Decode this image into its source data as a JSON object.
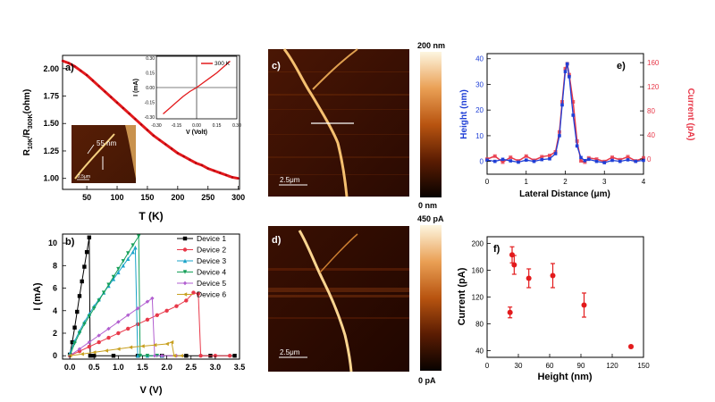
{
  "colors": {
    "red": "#e31a1c",
    "black": "#000000",
    "blue": "#1f3fd6",
    "pinkred": "#e8394a",
    "green": "#17a05a",
    "cyan": "#1aa3c8",
    "purple": "#b25fd0",
    "olive": "#c8a020",
    "afm_dark": "#1a0800",
    "afm_mid": "#8a3a08",
    "afm_light": "#f3d9a0"
  },
  "figure": {
    "panel_a": {
      "label": "a)",
      "xlabel": "T (K)",
      "ylabel_main": "R",
      "ylabel_sub1": "10K",
      "ylabel_mid": "/R",
      "ylabel_sub2": "300K",
      "ylabel_tail": "(ohm)",
      "xticks": [
        "50",
        "100",
        "150",
        "200",
        "250",
        "300"
      ],
      "yticks": [
        "1.00",
        "1.25",
        "1.50",
        "1.75",
        "2.00"
      ],
      "inset_iv": {
        "legend": "300 K",
        "xlabel": "V (Volt)",
        "ylabel": "I (mA)",
        "xticks": [
          "-0.30",
          "-0.15",
          "0.00",
          "0.15",
          "0.30"
        ],
        "yticks": [
          "0.30",
          "0.15",
          "0.00",
          "-0.15",
          "-0.30"
        ]
      },
      "inset_afm": {
        "width_label": "55 nm",
        "scale_label": "2.5μm"
      }
    },
    "panel_b": {
      "label": "b)",
      "xlabel": "V (V)",
      "ylabel": "I (mA)",
      "xticks": [
        "0.0",
        "0.5",
        "1.0",
        "1.5",
        "2.0",
        "2.5",
        "3.0",
        "3.5"
      ],
      "yticks": [
        "0",
        "2",
        "4",
        "6",
        "8",
        "10"
      ],
      "legend": [
        "Device 1",
        "Device 2",
        "Device 3",
        "Device 4",
        "Device 5",
        "Device 6"
      ]
    },
    "panel_c": {
      "label": "c)",
      "scale_label": "2.5μm",
      "cbar_top": "200 nm",
      "cbar_bottom": "0 nm"
    },
    "panel_d": {
      "label": "d)",
      "scale_label": "2.5μm",
      "cbar_top": "450 pA",
      "cbar_bottom": "0 pA"
    },
    "panel_e": {
      "label": "e)",
      "xlabel": "Lateral Distance (μm)",
      "ylabel_left": "Height (nm)",
      "ylabel_right": "Current (pA)",
      "xticks": [
        "0",
        "1",
        "2",
        "3",
        "4"
      ],
      "yticks_left": [
        "0",
        "10",
        "20",
        "30",
        "40"
      ],
      "yticks_right": [
        "0",
        "40",
        "80",
        "120",
        "160"
      ]
    },
    "panel_f": {
      "label": "f)",
      "xlabel": "Height (nm)",
      "ylabel": "Current (pA)",
      "xticks": [
        "0",
        "30",
        "60",
        "90",
        "120",
        "150"
      ],
      "yticks": [
        "40",
        "80",
        "120",
        "160",
        "200"
      ]
    }
  },
  "chart_data": [
    {
      "id": "a-main",
      "type": "line",
      "xlabel": "T (K)",
      "ylabel": "R10K/R300K(ohm)",
      "xlim": [
        10,
        302
      ],
      "ylim": [
        0.9,
        2.12
      ],
      "series": [
        {
          "x": [
            10,
            20,
            30,
            40,
            50,
            60,
            70,
            80,
            90,
            100,
            110,
            120,
            130,
            140,
            150,
            160,
            170,
            180,
            190,
            200,
            210,
            220,
            230,
            240,
            250,
            260,
            270,
            280,
            290,
            300
          ],
          "y": [
            2.07,
            2.05,
            2.02,
            1.98,
            1.94,
            1.89,
            1.84,
            1.79,
            1.74,
            1.69,
            1.64,
            1.59,
            1.54,
            1.49,
            1.44,
            1.39,
            1.35,
            1.31,
            1.27,
            1.23,
            1.2,
            1.17,
            1.14,
            1.12,
            1.09,
            1.07,
            1.05,
            1.03,
            1.01,
            1.0
          ]
        }
      ]
    },
    {
      "id": "a-inset",
      "type": "line",
      "xlabel": "V (Volt)",
      "ylabel": "I (mA)",
      "xlim": [
        -0.3,
        0.3
      ],
      "ylim": [
        -0.32,
        0.32
      ],
      "series": [
        {
          "name": "300 K",
          "x": [
            -0.25,
            -0.2,
            -0.15,
            -0.1,
            -0.05,
            0.0,
            0.05,
            0.1,
            0.15,
            0.2,
            0.25
          ],
          "y": [
            -0.27,
            -0.21,
            -0.15,
            -0.09,
            -0.04,
            0.0,
            0.05,
            0.1,
            0.15,
            0.21,
            0.27
          ]
        }
      ]
    },
    {
      "id": "b",
      "type": "line",
      "xlabel": "V (V)",
      "ylabel": "I (mA)",
      "xlim": [
        -0.15,
        3.5
      ],
      "ylim": [
        -0.3,
        10.8
      ],
      "series": [
        {
          "name": "Device 1",
          "x": [
            0.0,
            0.05,
            0.1,
            0.15,
            0.2,
            0.25,
            0.3,
            0.35,
            0.4,
            0.42,
            0.5,
            0.9,
            1.4,
            1.9,
            2.4,
            2.9,
            3.4
          ],
          "y": [
            0.1,
            1.2,
            2.5,
            3.9,
            5.3,
            6.6,
            7.9,
            9.2,
            10.5,
            0.0,
            0.0,
            0.0,
            0.0,
            0.0,
            0.0,
            0.0,
            0.0
          ]
        },
        {
          "name": "Device 2",
          "x": [
            0.0,
            0.2,
            0.4,
            0.6,
            0.8,
            1.0,
            1.2,
            1.4,
            1.6,
            1.8,
            2.0,
            2.2,
            2.4,
            2.55,
            2.65,
            2.7,
            3.0,
            3.3
          ],
          "y": [
            0.0,
            0.4,
            0.8,
            1.2,
            1.6,
            2.0,
            2.4,
            2.8,
            3.2,
            3.6,
            4.0,
            4.4,
            4.9,
            5.6,
            5.5,
            0.0,
            0.0,
            0.0
          ]
        },
        {
          "name": "Device 3",
          "x": [
            0.0,
            0.1,
            0.2,
            0.3,
            0.4,
            0.5,
            0.6,
            0.7,
            0.8,
            0.9,
            1.0,
            1.1,
            1.2,
            1.3,
            1.35,
            1.4,
            1.6,
            1.9
          ],
          "y": [
            0.2,
            1.3,
            2.2,
            3.0,
            3.7,
            4.4,
            5.0,
            5.6,
            6.2,
            6.8,
            7.4,
            8.0,
            8.6,
            9.2,
            9.6,
            0.0,
            0.0,
            0.0
          ]
        },
        {
          "name": "Device 4",
          "x": [
            0.0,
            0.1,
            0.2,
            0.3,
            0.4,
            0.5,
            0.6,
            0.7,
            0.8,
            0.9,
            1.0,
            1.1,
            1.2,
            1.3,
            1.42,
            1.45,
            1.6,
            1.8
          ],
          "y": [
            0.0,
            1.1,
            2.0,
            2.8,
            3.5,
            4.2,
            4.9,
            5.6,
            6.3,
            7.0,
            7.7,
            8.4,
            9.1,
            9.8,
            10.6,
            0.0,
            0.0,
            0.0
          ]
        },
        {
          "name": "Device 5",
          "x": [
            0.0,
            0.2,
            0.4,
            0.6,
            0.8,
            1.0,
            1.2,
            1.4,
            1.6,
            1.7,
            1.75,
            1.9,
            2.2
          ],
          "y": [
            0.0,
            0.6,
            1.2,
            1.8,
            2.4,
            3.0,
            3.6,
            4.2,
            4.8,
            5.1,
            0.0,
            0.0,
            0.0
          ]
        },
        {
          "name": "Device 6",
          "x": [
            0.0,
            0.25,
            0.5,
            0.75,
            1.0,
            1.25,
            1.5,
            1.75,
            2.0,
            2.1,
            2.15,
            2.3
          ],
          "y": [
            0.0,
            0.15,
            0.3,
            0.45,
            0.6,
            0.75,
            0.85,
            0.95,
            1.05,
            1.2,
            0.0,
            0.0
          ]
        }
      ]
    },
    {
      "id": "e",
      "type": "line",
      "xlabel": "Lateral Distance (μm)",
      "ylabel": "Height (nm)",
      "y2label": "Current (pA)",
      "xlim": [
        0,
        4
      ],
      "ylim": [
        -5,
        42
      ],
      "y2lim": [
        -25,
        175
      ],
      "series": [
        {
          "name": "Height (nm)",
          "x": [
            0.0,
            0.2,
            0.4,
            0.6,
            0.8,
            1.0,
            1.2,
            1.4,
            1.6,
            1.75,
            1.85,
            1.92,
            2.0,
            2.05,
            2.1,
            2.2,
            2.3,
            2.4,
            2.5,
            2.6,
            2.8,
            3.0,
            3.2,
            3.4,
            3.6,
            3.8,
            4.0
          ],
          "y": [
            0.5,
            0.0,
            0.8,
            0.2,
            -0.3,
            0.5,
            0.0,
            0.7,
            1.0,
            3.0,
            10.0,
            22.0,
            35.0,
            38.0,
            33.0,
            18.0,
            6.0,
            1.5,
            0.3,
            0.8,
            0.0,
            -0.5,
            0.4,
            0.0,
            0.6,
            0.0,
            0.4
          ]
        },
        {
          "name": "Current (pA)",
          "x": [
            0.0,
            0.2,
            0.4,
            0.6,
            0.8,
            1.0,
            1.2,
            1.4,
            1.6,
            1.75,
            1.85,
            1.92,
            2.0,
            2.05,
            2.1,
            2.2,
            2.3,
            2.4,
            2.5,
            2.6,
            2.8,
            3.0,
            3.2,
            3.4,
            3.6,
            3.8,
            4.0
          ],
          "y": [
            0,
            5,
            -5,
            3,
            -3,
            5,
            -2,
            4,
            6,
            12,
            45,
            95,
            150,
            158,
            140,
            95,
            30,
            -3,
            -5,
            2,
            0,
            -4,
            3,
            -1,
            4,
            -3,
            2
          ]
        }
      ]
    },
    {
      "id": "f",
      "type": "scatter",
      "xlabel": "Height (nm)",
      "ylabel": "Current (pA)",
      "xlim": [
        0,
        150
      ],
      "ylim": [
        30,
        210
      ],
      "series": [
        {
          "x": [
            22,
            24,
            26,
            40,
            63,
            93,
            138
          ],
          "y": [
            97,
            183,
            168,
            148,
            152,
            108,
            46
          ],
          "err": [
            8,
            12,
            14,
            14,
            18,
            18,
            2
          ]
        }
      ]
    }
  ]
}
